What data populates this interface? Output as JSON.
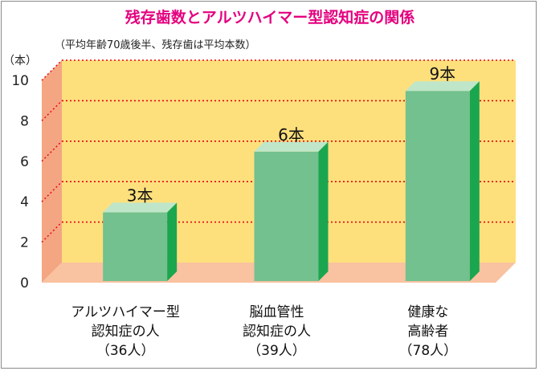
{
  "chart_data": {
    "type": "bar",
    "title": "残存歯数とアルツハイマー型認知症の関係",
    "subtitle": "（平均年齢70歳後半、残存歯は平均本数）",
    "ylabel": "（本）",
    "ylim": [
      0,
      10
    ],
    "yticks": [
      "0",
      "2",
      "4",
      "6",
      "8",
      "10"
    ],
    "grid": true,
    "categories": [
      [
        "アルツハイマー型",
        "認知症の人",
        "（36人）"
      ],
      [
        "脳血管性",
        "認知症の人",
        "（39人）"
      ],
      [
        "健康な",
        "高齢者",
        "（78人）"
      ]
    ],
    "values": [
      3,
      6,
      9
    ],
    "value_labels": [
      "3本",
      "6本",
      "9本"
    ],
    "colors": {
      "title": "#e4007f",
      "bar_front": "#72c18f",
      "bar_top": "#bfe6c9",
      "bar_side": "#1aa64f",
      "back_wall": "#fde07c",
      "left_wall": "#f4a582",
      "floor": "#f9c2a0",
      "gridline": "#e60012"
    }
  }
}
